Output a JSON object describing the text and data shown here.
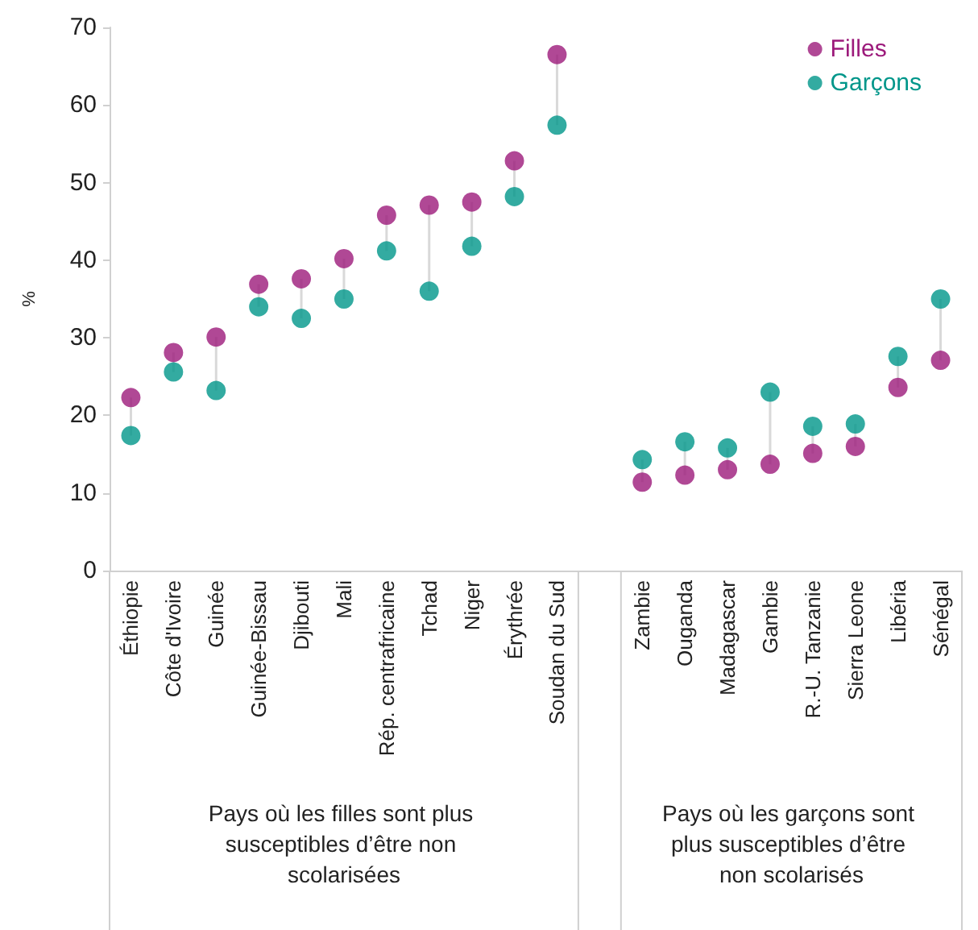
{
  "chart_data": {
    "type": "scatter",
    "ylabel": "%",
    "categories": [
      "Éthiopie",
      "Côte d'Ivoire",
      "Guinée",
      "Guinée-Bissau",
      "Djibouti",
      "Mali",
      "Rép. centrafricaine",
      "Tchad",
      "Niger",
      "Érythrée",
      "Soudan du Sud",
      null,
      "Zambie",
      "Ouganda",
      "Madagascar",
      "Gambie",
      "R.-U. Tanzanie",
      "Sierra Leone",
      "Libéria",
      "Sénégal"
    ],
    "series": [
      {
        "name": "Filles",
        "color": "#9c1a7b",
        "values": [
          22.3,
          28.1,
          30.1,
          36.9,
          37.6,
          40.2,
          45.8,
          47.1,
          47.5,
          52.8,
          66.5,
          null,
          11.4,
          12.3,
          13.0,
          13.7,
          15.1,
          16.0,
          23.6,
          27.1
        ]
      },
      {
        "name": "Garçons",
        "color": "#00968a",
        "values": [
          17.4,
          25.6,
          23.2,
          34.0,
          32.5,
          35.0,
          41.2,
          36.0,
          41.8,
          48.2,
          57.4,
          null,
          14.3,
          16.6,
          15.8,
          23.0,
          18.6,
          18.9,
          27.6,
          35.0
        ]
      }
    ],
    "ylim": [
      0,
      70
    ],
    "yticks": [
      0,
      10,
      20,
      30,
      40,
      50,
      60,
      70
    ],
    "grid": false,
    "legend": "top right",
    "marker": "circle",
    "annotations": [
      "Pays où les filles sont plus susceptibles d’être non scolarisées",
      "Pays où les garçons sont plus susceptibles d’être non scolarisés"
    ]
  }
}
